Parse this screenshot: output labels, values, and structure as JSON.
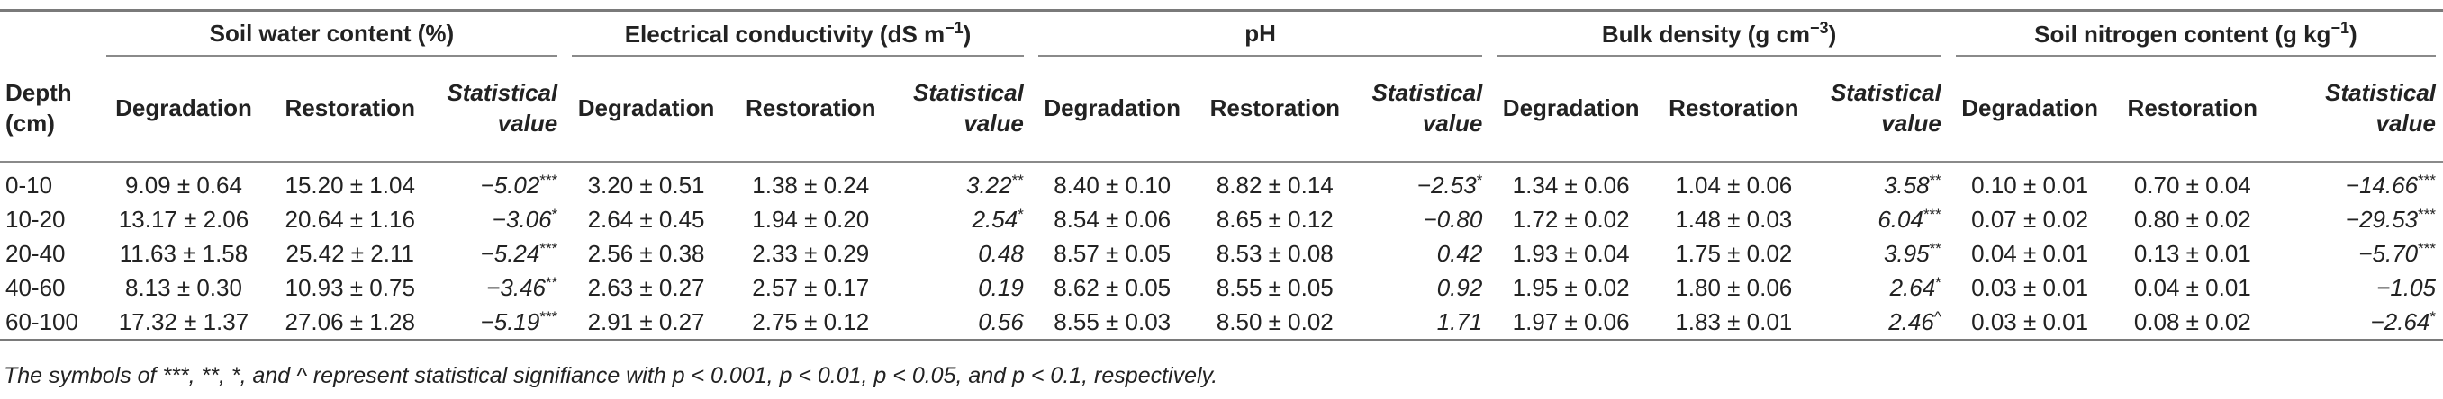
{
  "table": {
    "depth_header_line1": "Depth",
    "depth_header_line2": "(cm)",
    "groups": [
      {
        "label": "Soil water content (%)",
        "unit_sup": ""
      },
      {
        "label": "Electrical conductivity (dS m",
        "unit_sup": "−1",
        "label_tail": ")"
      },
      {
        "label": "pH",
        "unit_sup": ""
      },
      {
        "label": "Bulk density (g cm",
        "unit_sup": "−3",
        "label_tail": ")"
      },
      {
        "label": "Soil nitrogen content (g kg",
        "unit_sup": "−1",
        "label_tail": ")"
      }
    ],
    "sub_degradation": "Degradation",
    "sub_restoration": "Restoration",
    "sub_stat_line1": "Statistical",
    "sub_stat_line2": "value",
    "rows": [
      {
        "depth": "0-10",
        "cells": [
          {
            "deg": "9.09 ± 0.64",
            "res": "15.20 ± 1.04",
            "stat": "−5.02",
            "sig": "***"
          },
          {
            "deg": "3.20 ± 0.51",
            "res": "1.38 ± 0.24",
            "stat": "3.22",
            "sig": "**"
          },
          {
            "deg": "8.40 ± 0.10",
            "res": "8.82 ± 0.14",
            "stat": "−2.53",
            "sig": "*"
          },
          {
            "deg": "1.34 ± 0.06",
            "res": "1.04 ± 0.06",
            "stat": "3.58",
            "sig": "**"
          },
          {
            "deg": "0.10 ± 0.01",
            "res": "0.70 ± 0.04",
            "stat": "−14.66",
            "sig": "***"
          }
        ]
      },
      {
        "depth": "10-20",
        "cells": [
          {
            "deg": "13.17 ± 2.06",
            "res": "20.64 ± 1.16",
            "stat": "−3.06",
            "sig": "*"
          },
          {
            "deg": "2.64 ± 0.45",
            "res": "1.94 ± 0.20",
            "stat": "2.54",
            "sig": "*"
          },
          {
            "deg": "8.54 ± 0.06",
            "res": "8.65 ± 0.12",
            "stat": "−0.80",
            "sig": ""
          },
          {
            "deg": "1.72 ± 0.02",
            "res": "1.48 ± 0.03",
            "stat": "6.04",
            "sig": "***"
          },
          {
            "deg": "0.07 ± 0.02",
            "res": "0.80 ± 0.02",
            "stat": "−29.53",
            "sig": "***"
          }
        ]
      },
      {
        "depth": "20-40",
        "cells": [
          {
            "deg": "11.63 ± 1.58",
            "res": "25.42 ± 2.11",
            "stat": "−5.24",
            "sig": "***"
          },
          {
            "deg": "2.56 ± 0.38",
            "res": "2.33 ± 0.29",
            "stat": "0.48",
            "sig": ""
          },
          {
            "deg": "8.57 ± 0.05",
            "res": "8.53 ± 0.08",
            "stat": "0.42",
            "sig": ""
          },
          {
            "deg": "1.93 ± 0.04",
            "res": "1.75 ± 0.02",
            "stat": "3.95",
            "sig": "**"
          },
          {
            "deg": "0.04 ± 0.01",
            "res": "0.13 ± 0.01",
            "stat": "−5.70",
            "sig": "***"
          }
        ]
      },
      {
        "depth": "40-60",
        "cells": [
          {
            "deg": "8.13 ± 0.30",
            "res": "10.93 ± 0.75",
            "stat": "−3.46",
            "sig": "**"
          },
          {
            "deg": "2.63 ± 0.27",
            "res": "2.57 ± 0.17",
            "stat": "0.19",
            "sig": ""
          },
          {
            "deg": "8.62 ± 0.05",
            "res": "8.55 ± 0.05",
            "stat": "0.92",
            "sig": ""
          },
          {
            "deg": "1.95 ± 0.02",
            "res": "1.80 ± 0.06",
            "stat": "2.64",
            "sig": "*"
          },
          {
            "deg": "0.03 ± 0.01",
            "res": "0.04 ± 0.01",
            "stat": "−1.05",
            "sig": ""
          }
        ]
      },
      {
        "depth": "60-100",
        "cells": [
          {
            "deg": "17.32 ± 1.37",
            "res": "27.06 ± 1.28",
            "stat": "−5.19",
            "sig": "***"
          },
          {
            "deg": "2.91 ± 0.27",
            "res": "2.75 ± 0.12",
            "stat": "0.56",
            "sig": ""
          },
          {
            "deg": "8.55 ± 0.03",
            "res": "8.50 ± 0.02",
            "stat": "1.71",
            "sig": ""
          },
          {
            "deg": "1.97 ± 0.06",
            "res": "1.83 ± 0.01",
            "stat": "2.46",
            "sig": "^"
          },
          {
            "deg": "0.03 ± 0.01",
            "res": "0.08 ± 0.02",
            "stat": "−2.64",
            "sig": "*"
          }
        ]
      }
    ]
  },
  "footnote": "The symbols of ***, **, *, and ^ represent statistical signifiance with p < 0.001, p < 0.01, p < 0.05, and p < 0.1, respectively."
}
